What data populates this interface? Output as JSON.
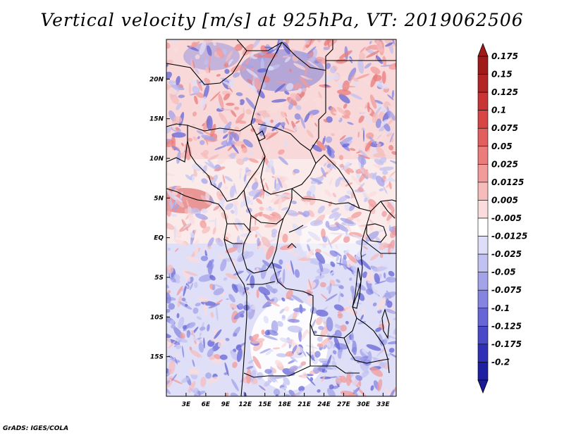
{
  "title": "Vertical velocity [m/s] at 925hPa, VT: 2019062506",
  "credit": "GrADS: IGES/COLA",
  "map": {
    "lon_range": [
      0,
      35
    ],
    "lat_range": [
      -20,
      25
    ],
    "lat_ticks": [
      {
        "value": 20,
        "label": "20N"
      },
      {
        "value": 15,
        "label": "15N"
      },
      {
        "value": 10,
        "label": "10N"
      },
      {
        "value": 5,
        "label": "5N"
      },
      {
        "value": 0,
        "label": "EQ"
      },
      {
        "value": -5,
        "label": "5S"
      },
      {
        "value": -10,
        "label": "10S"
      },
      {
        "value": -15,
        "label": "15S"
      }
    ],
    "lon_ticks": [
      {
        "value": 3,
        "label": "3E"
      },
      {
        "value": 6,
        "label": "6E"
      },
      {
        "value": 9,
        "label": "9E"
      },
      {
        "value": 12,
        "label": "12E"
      },
      {
        "value": 15,
        "label": "15E"
      },
      {
        "value": 18,
        "label": "18E"
      },
      {
        "value": 21,
        "label": "21E"
      },
      {
        "value": 24,
        "label": "24E"
      },
      {
        "value": 27,
        "label": "27E"
      },
      {
        "value": 30,
        "label": "30E"
      },
      {
        "value": 33,
        "label": "33E"
      }
    ]
  },
  "colorbar": {
    "levels": [
      {
        "label": "0.175",
        "color": "#a11a1a"
      },
      {
        "label": "0.15",
        "color": "#b52424"
      },
      {
        "label": "0.125",
        "color": "#c93434"
      },
      {
        "label": "0.1",
        "color": "#d84545"
      },
      {
        "label": "0.075",
        "color": "#e15f5f"
      },
      {
        "label": "0.05",
        "color": "#ea7c7c"
      },
      {
        "label": "0.025",
        "color": "#f19b9b"
      },
      {
        "label": "0.0125",
        "color": "#f6bcbc"
      },
      {
        "label": "0.005",
        "color": "#fadcdc"
      },
      {
        "label": "-0.005",
        "color": "#ffffff"
      },
      {
        "label": "-0.0125",
        "color": "#dedef8"
      },
      {
        "label": "-0.025",
        "color": "#c2c2f2"
      },
      {
        "label": "-0.05",
        "color": "#a3a3ea"
      },
      {
        "label": "-0.075",
        "color": "#8585e1"
      },
      {
        "label": "-0.1",
        "color": "#6666d6"
      },
      {
        "label": "-0.125",
        "color": "#4a4ac9"
      },
      {
        "label": "-0.175",
        "color": "#3030b6"
      },
      {
        "label": "-0.2",
        "color": "#1f1fa2"
      }
    ],
    "top_color": "#a11a1a",
    "bottom_color": "#1a1a9a"
  }
}
